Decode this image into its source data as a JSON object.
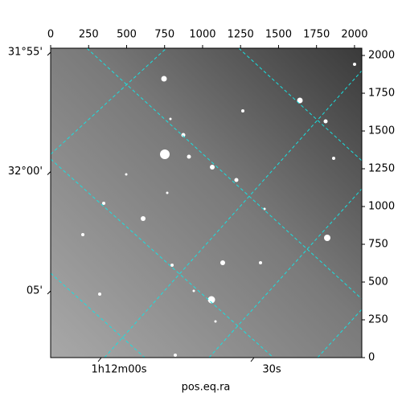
{
  "chart_data": {
    "type": "image",
    "xlim": [
      0,
      2048
    ],
    "ylim": [
      0,
      2048
    ],
    "xticks": [
      0,
      250,
      500,
      750,
      1000,
      1250,
      1500,
      1750,
      2000
    ],
    "yticks": [
      0,
      250,
      500,
      750,
      1000,
      1250,
      1500,
      1750,
      2000
    ],
    "ra_ticks": [
      {
        "value": 18.0,
        "label": "1h12m00s"
      },
      {
        "value": 18.125,
        "label": "30s"
      }
    ],
    "dec_ticks": [
      {
        "value": 31.9167,
        "label": "31°55'"
      },
      {
        "value": 32.0,
        "label": "32°00'"
      },
      {
        "value": 32.0833,
        "label": "05'"
      }
    ],
    "xlabel": "pos.eq.ra",
    "grid": true,
    "grid_color": "#19e0e0"
  }
}
